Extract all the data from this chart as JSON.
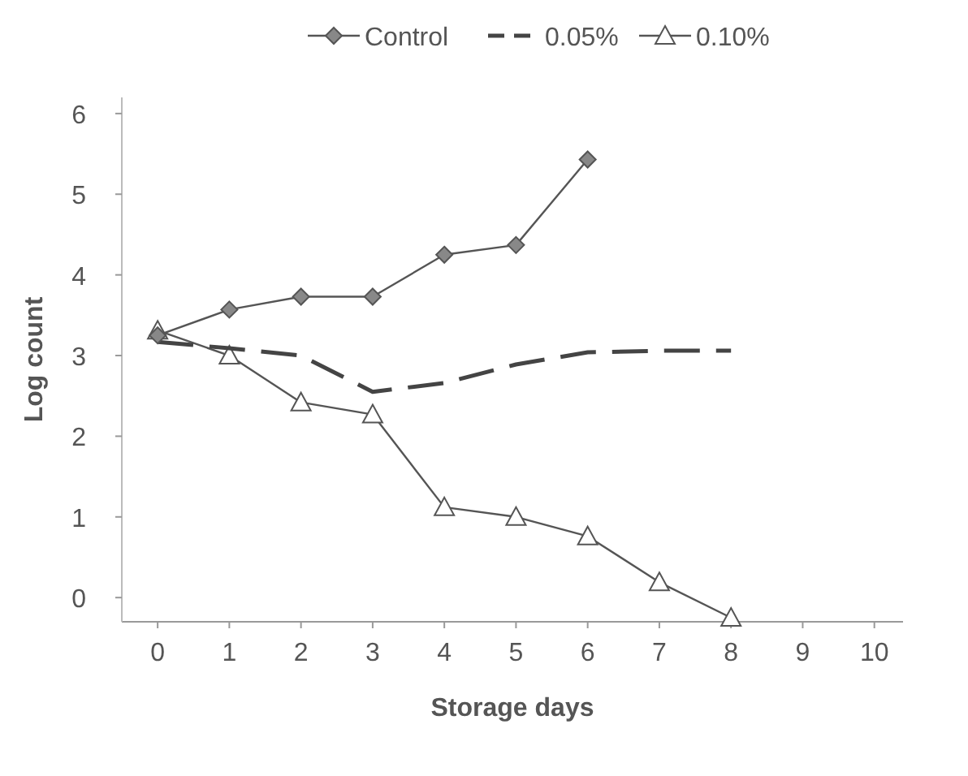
{
  "chart_data": {
    "type": "line",
    "xlabel": "Storage days",
    "ylabel": "Log count",
    "x": [
      0,
      1,
      2,
      3,
      4,
      5,
      6,
      7,
      8
    ],
    "xlim": [
      -0.5,
      10.4
    ],
    "xticks": [
      0,
      1,
      2,
      3,
      4,
      5,
      6,
      7,
      8,
      9,
      10
    ],
    "ylim": [
      -0.3,
      6.2
    ],
    "yticks": [
      0,
      1,
      2,
      3,
      4,
      5,
      6
    ],
    "grid": false,
    "legend": "top",
    "series": [
      {
        "name": "Control",
        "color": "#555555",
        "marker": "diamond",
        "line_style": "solid",
        "values": [
          3.25,
          3.57,
          3.73,
          3.73,
          4.25,
          4.37,
          5.43,
          null,
          null
        ]
      },
      {
        "name": "0.05%",
        "color": "#444444",
        "marker": "none",
        "line_style": "dashed",
        "values": [
          3.17,
          3.09,
          3.0,
          2.55,
          2.66,
          2.89,
          3.04,
          3.06,
          3.06
        ]
      },
      {
        "name": "0.10%",
        "color": "#555555",
        "marker": "triangle",
        "line_style": "solid",
        "values": [
          3.31,
          3.0,
          2.42,
          2.27,
          1.12,
          1.0,
          0.76,
          0.19,
          -0.25
        ]
      }
    ]
  }
}
